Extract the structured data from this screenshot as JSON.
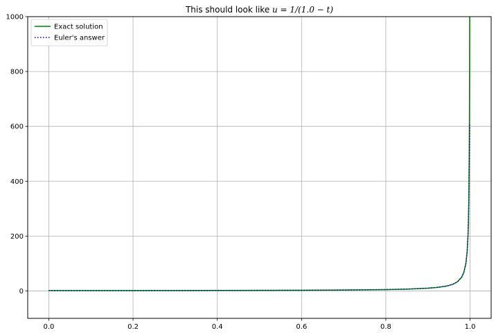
{
  "chart_data": {
    "type": "line",
    "title": "This should look like u = 1/(1.0 − t)",
    "title_parts": {
      "prefix": "This should look like ",
      "math": "u = 1/(1.0 − t)"
    },
    "xlabel": "",
    "ylabel": "",
    "xlim": [
      -0.05,
      1.05
    ],
    "ylim": [
      -100,
      1000
    ],
    "x_ticks": [
      0.0,
      0.2,
      0.4,
      0.6,
      0.8,
      1.0
    ],
    "x_tick_labels": [
      "0.0",
      "0.2",
      "0.4",
      "0.6",
      "0.8",
      "1.0"
    ],
    "y_ticks": [
      0,
      200,
      400,
      600,
      800,
      1000
    ],
    "y_tick_labels": [
      "0",
      "200",
      "400",
      "600",
      "800",
      "1000"
    ],
    "grid": true,
    "legend_position": "top-left",
    "x": [
      0.0,
      0.1,
      0.2,
      0.3,
      0.4,
      0.5,
      0.6,
      0.7,
      0.75,
      0.8,
      0.85,
      0.9,
      0.92,
      0.94,
      0.95,
      0.96,
      0.97,
      0.98,
      0.985,
      0.99,
      0.993,
      0.995,
      0.996,
      0.997,
      0.998,
      0.9985,
      0.999
    ],
    "series": [
      {
        "name": "Exact solution",
        "color": "#008000",
        "style": "solid",
        "values": [
          1.0,
          1.11,
          1.25,
          1.43,
          1.67,
          2.0,
          2.5,
          3.33,
          4.0,
          5.0,
          6.67,
          10.0,
          12.5,
          16.67,
          20.0,
          25.0,
          33.33,
          50.0,
          66.67,
          100.0,
          142.86,
          200.0,
          250.0,
          333.33,
          500.0,
          666.67,
          1000.0
        ]
      },
      {
        "name": "Euler's answer",
        "color": "#0000cc",
        "style": "dotted",
        "values": [
          1.0,
          1.11,
          1.25,
          1.43,
          1.67,
          2.0,
          2.5,
          3.33,
          4.0,
          5.0,
          6.67,
          10.0,
          12.5,
          16.67,
          20.0,
          25.0,
          33.33,
          50.0,
          66.67,
          100.0,
          142.86,
          200.0,
          250.0,
          333.33,
          450.0,
          540.0,
          610.0
        ]
      }
    ]
  }
}
